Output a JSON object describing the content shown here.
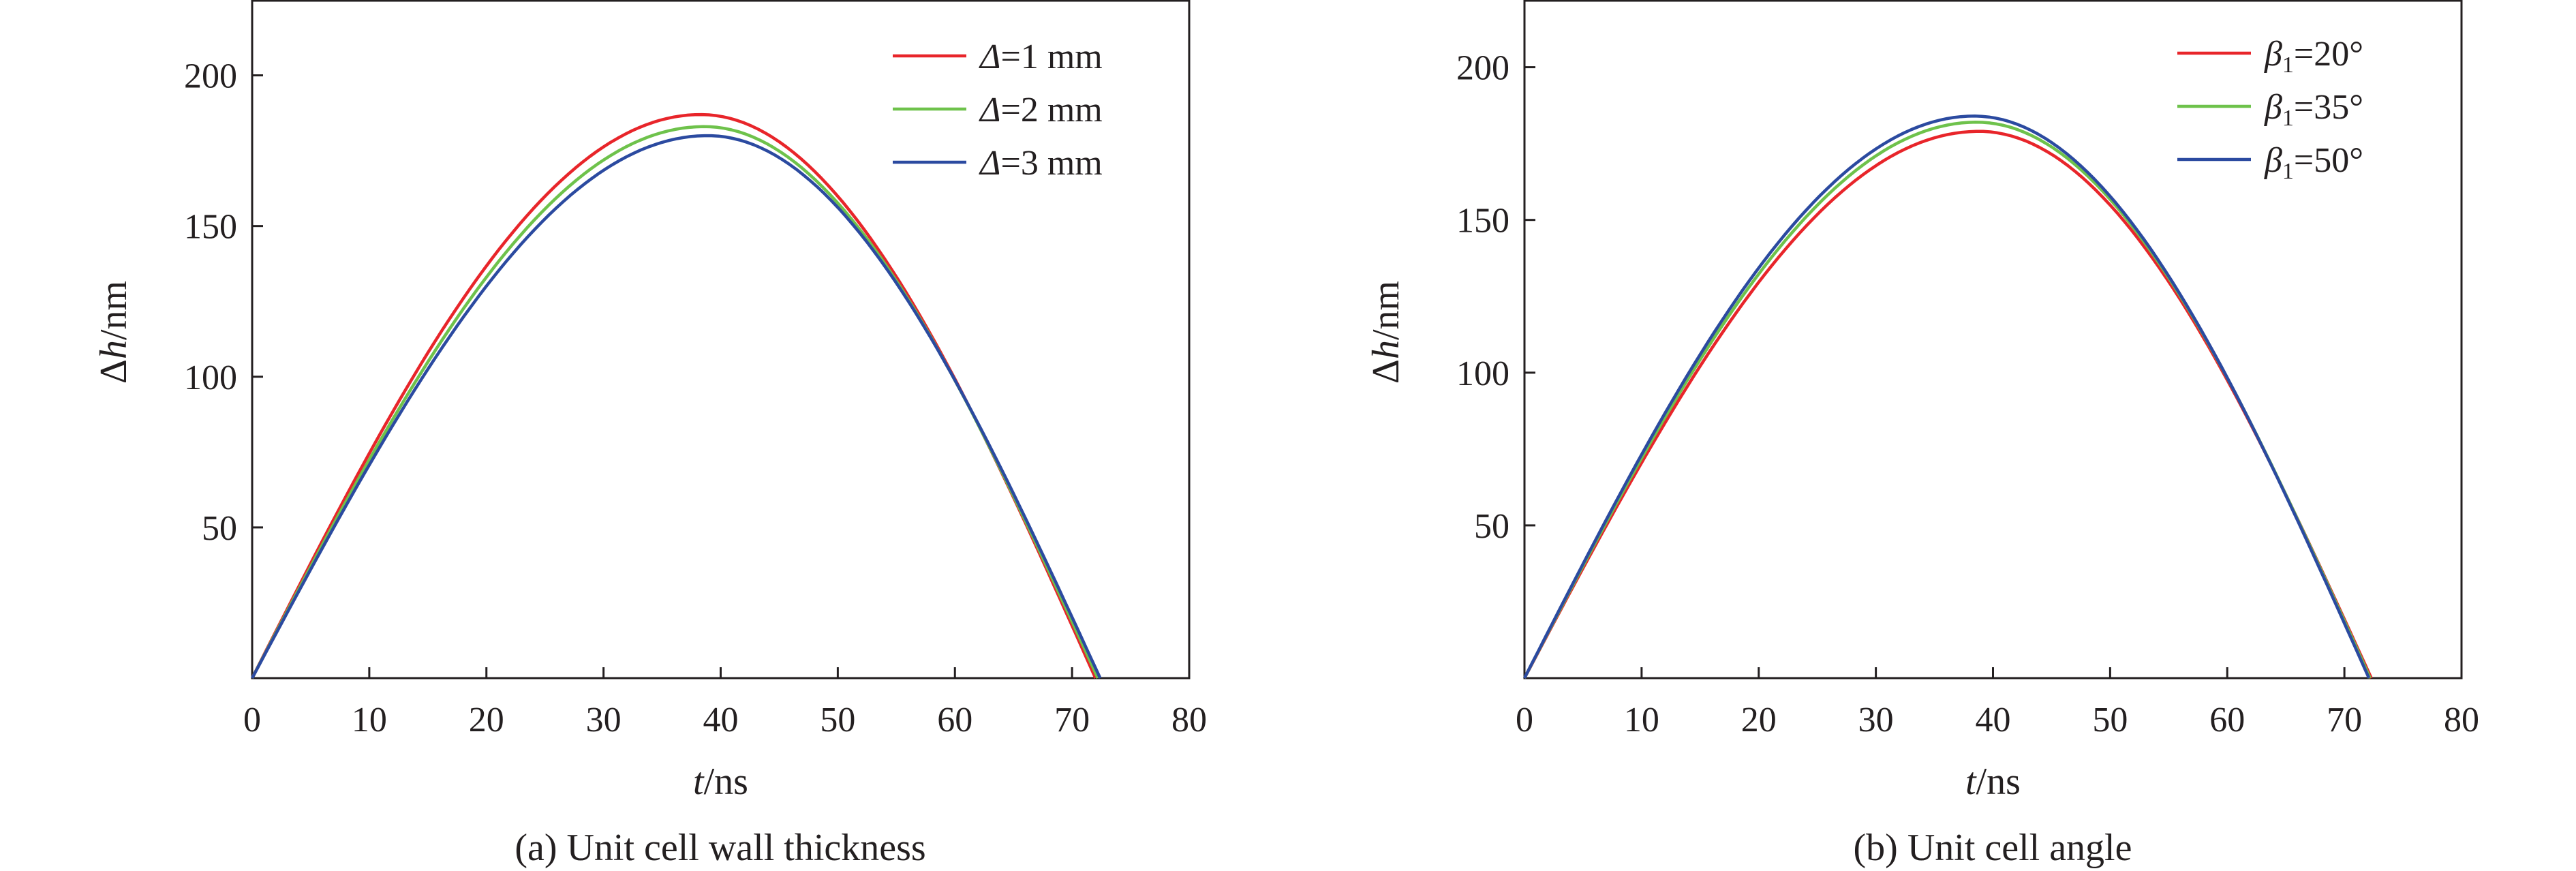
{
  "chart_data": [
    {
      "type": "line",
      "caption": "(a) Unit cell wall thickness",
      "xlabel": {
        "var": "t",
        "unit": "/ns"
      },
      "ylabel": {
        "var": "Δh",
        "unit": "/nm"
      },
      "xlim": [
        0,
        80
      ],
      "ylim": [
        0,
        225
      ],
      "x_ticks": [
        0,
        10,
        20,
        30,
        40,
        50,
        60,
        70,
        80
      ],
      "y_ticks": [
        50,
        100,
        150,
        200
      ],
      "legend_position": "top-right",
      "series": [
        {
          "name": "Δ=1 mm",
          "label": {
            "sym": "Δ",
            "rest": "=1 mm"
          },
          "color": "#e8252a",
          "peak": 187,
          "peak_t": 38.3,
          "end_t": 72.0
        },
        {
          "name": "Δ=2 mm",
          "label": {
            "sym": "Δ",
            "rest": "=2 mm"
          },
          "color": "#6ec24b",
          "peak": 183,
          "peak_t": 38.6,
          "end_t": 72.2
        },
        {
          "name": "Δ=3 mm",
          "label": {
            "sym": "Δ",
            "rest": "=3 mm"
          },
          "color": "#2b4aa0",
          "peak": 180,
          "peak_t": 38.9,
          "end_t": 72.4
        }
      ]
    },
    {
      "type": "line",
      "caption": "(b) Unit cell angle",
      "xlabel": {
        "var": "t",
        "unit": "/ns"
      },
      "ylabel": {
        "var": "Δh",
        "unit": "/nm"
      },
      "xlim": [
        0,
        80
      ],
      "ylim": [
        0,
        222
      ],
      "x_ticks": [
        0,
        10,
        20,
        30,
        40,
        50,
        60,
        70,
        80
      ],
      "y_ticks": [
        50,
        100,
        150,
        200
      ],
      "legend_position": "top-right",
      "series": [
        {
          "name": "β1=20°",
          "label": {
            "sym": "β",
            "sub": "1",
            "rest": "=20°"
          },
          "color": "#e8252a",
          "peak": 179,
          "peak_t": 38.8,
          "end_t": 72.3
        },
        {
          "name": "β1=35°",
          "label": {
            "sym": "β",
            "sub": "1",
            "rest": "=35°"
          },
          "color": "#6ec24b",
          "peak": 182,
          "peak_t": 38.6,
          "end_t": 72.2
        },
        {
          "name": "β1=50°",
          "label": {
            "sym": "β",
            "sub": "1",
            "rest": "=50°"
          },
          "color": "#2b4aa0",
          "peak": 184,
          "peak_t": 38.4,
          "end_t": 72.1
        }
      ]
    }
  ]
}
